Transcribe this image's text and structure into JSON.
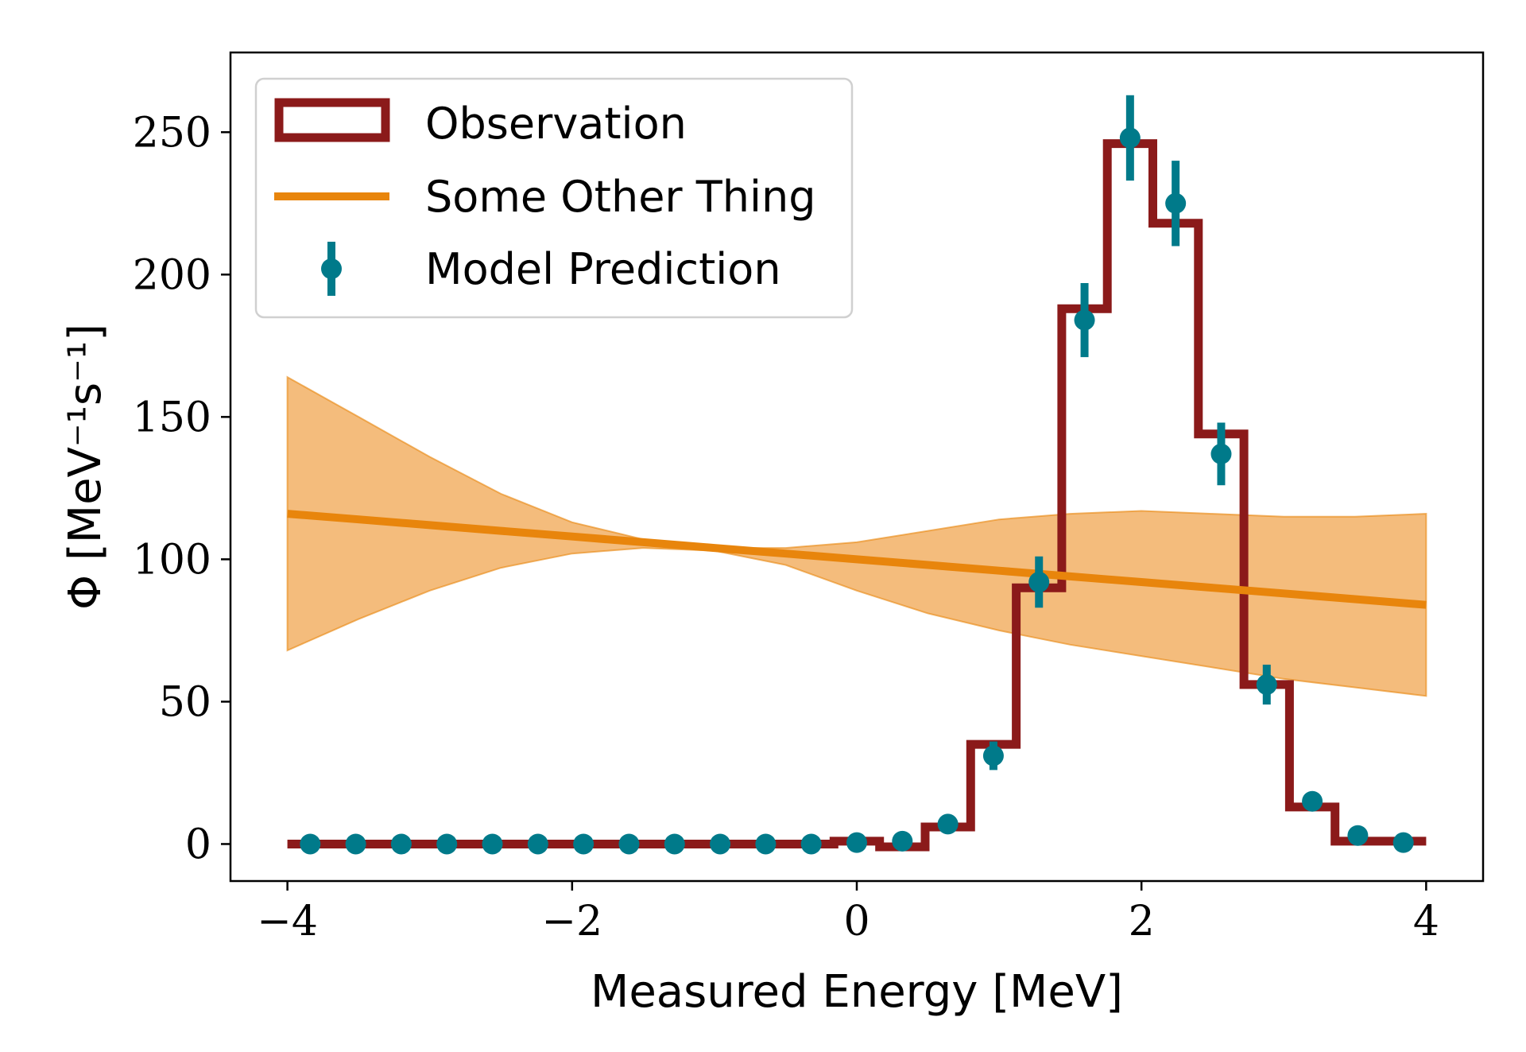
{
  "chart_data": {
    "type": "line",
    "xlabel": "Measured Energy [MeV]",
    "ylabel": "Φ [MeV⁻¹s⁻¹]",
    "xlim": [
      -4.4,
      4.4
    ],
    "ylim": [
      -13,
      278
    ],
    "xticks": [
      -4,
      -2,
      0,
      2,
      4
    ],
    "xtick_labels": [
      "−4",
      "−2",
      "0",
      "2",
      "4"
    ],
    "yticks": [
      0,
      50,
      100,
      150,
      200,
      250
    ],
    "ytick_labels": [
      "0",
      "50",
      "100",
      "150",
      "200",
      "250"
    ],
    "grid": false,
    "legend_position": "upper-left",
    "series": [
      {
        "name": "Observation",
        "kind": "step-histogram",
        "color": "#8b1a1a",
        "bin_edges": [
          -4.0,
          -3.68,
          -3.36,
          -3.04,
          -2.72,
          -2.4,
          -2.08,
          -1.76,
          -1.44,
          -1.12,
          -0.8,
          -0.48,
          -0.16,
          0.16,
          0.48,
          0.8,
          1.12,
          1.44,
          1.76,
          2.08,
          2.4,
          2.72,
          3.04,
          3.36,
          3.68,
          4.0
        ],
        "values": [
          0,
          0,
          0,
          0,
          0,
          0,
          0,
          0,
          0,
          0,
          0,
          0,
          1,
          -1,
          6,
          35,
          90,
          188,
          246,
          218,
          144,
          56,
          13,
          1,
          1
        ]
      },
      {
        "name": "Some Other Thing",
        "kind": "line-with-band",
        "color": "#e8850c",
        "band_color": "#f0a650",
        "x": [
          -4.0,
          -3.5,
          -3.0,
          -2.5,
          -2.0,
          -1.5,
          -1.0,
          -0.5,
          0.0,
          0.5,
          1.0,
          1.5,
          2.0,
          2.5,
          3.0,
          3.5,
          4.0
        ],
        "values": [
          116,
          114,
          112,
          110,
          108,
          106,
          104,
          102,
          100,
          98,
          96,
          94,
          92,
          90,
          88,
          86,
          84
        ],
        "band_upper": [
          164,
          150,
          136,
          123,
          113,
          107,
          104,
          104,
          106,
          110,
          114,
          116,
          117,
          116,
          115,
          115,
          116
        ],
        "band_lower": [
          68,
          79,
          89,
          97,
          102,
          104,
          103,
          98,
          89,
          81,
          75,
          70,
          66,
          62,
          58,
          55,
          52
        ]
      },
      {
        "name": "Model Prediction",
        "kind": "errorbar",
        "color": "#007a8a",
        "x": [
          -3.84,
          -3.52,
          -3.2,
          -2.88,
          -2.56,
          -2.24,
          -1.92,
          -1.6,
          -1.28,
          -0.96,
          -0.64,
          -0.32,
          0.0,
          0.32,
          0.64,
          0.96,
          1.28,
          1.6,
          1.92,
          2.24,
          2.56,
          2.88,
          3.2,
          3.52,
          3.84
        ],
        "values": [
          0,
          0,
          0,
          0,
          0,
          0,
          0,
          0,
          0,
          0,
          0,
          0,
          0.5,
          1,
          7,
          31,
          92,
          184,
          248,
          225,
          137,
          56,
          15,
          3,
          0.5
        ],
        "errors": [
          0,
          0,
          0,
          0,
          0,
          0,
          0,
          0,
          0,
          0,
          0,
          0,
          0.5,
          1,
          2,
          5,
          9,
          13,
          15,
          15,
          11,
          7,
          3,
          1,
          0.5
        ]
      }
    ]
  }
}
